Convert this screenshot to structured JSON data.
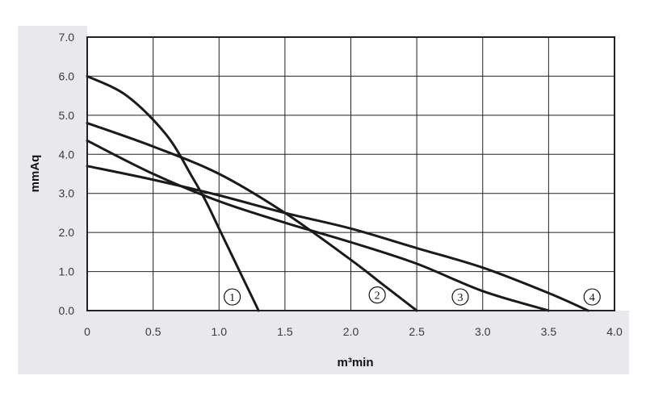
{
  "chart_data": {
    "type": "line",
    "title": "",
    "xlabel": "m³min",
    "ylabel": "mmAq",
    "xlim": [
      0,
      4.0
    ],
    "ylim": [
      0,
      7.0
    ],
    "x_ticks": [
      {
        "value": 0,
        "label": "0"
      },
      {
        "value": 0.5,
        "label": "0.5"
      },
      {
        "value": 1.0,
        "label": "1.0"
      },
      {
        "value": 1.5,
        "label": "1.5"
      },
      {
        "value": 2.0,
        "label": "2.0"
      },
      {
        "value": 2.5,
        "label": "2.5"
      },
      {
        "value": 3.0,
        "label": "3.0"
      },
      {
        "value": 3.5,
        "label": "3.5"
      },
      {
        "value": 4.0,
        "label": "4.0"
      }
    ],
    "y_ticks": [
      {
        "value": 0,
        "label": "0.0"
      },
      {
        "value": 1.0,
        "label": "1.0"
      },
      {
        "value": 2.0,
        "label": "2.0"
      },
      {
        "value": 3.0,
        "label": "3.0"
      },
      {
        "value": 4.0,
        "label": "4.0"
      },
      {
        "value": 5.0,
        "label": "5.0"
      },
      {
        "value": 6.0,
        "label": "6.0"
      },
      {
        "value": 7.0,
        "label": "7.0"
      }
    ],
    "grid": true,
    "series": [
      {
        "marker": "①",
        "label_at": [
          1.1,
          0.35
        ],
        "x": [
          0,
          0.3,
          0.6,
          0.8,
          0.9,
          1.0,
          1.1,
          1.2,
          1.3
        ],
        "y": [
          6.0,
          5.5,
          4.5,
          3.4,
          2.8,
          2.1,
          1.4,
          0.7,
          0.0
        ]
      },
      {
        "marker": "②",
        "label_at": [
          2.2,
          0.4
        ],
        "x": [
          0,
          0.5,
          1.0,
          1.5,
          2.0,
          2.25,
          2.5
        ],
        "y": [
          4.8,
          4.2,
          3.5,
          2.5,
          1.3,
          0.65,
          0.0
        ]
      },
      {
        "marker": "③",
        "label_at": [
          2.83,
          0.35
        ],
        "x": [
          0,
          0.5,
          1.0,
          1.5,
          2.0,
          2.5,
          3.0,
          3.5
        ],
        "y": [
          4.35,
          3.5,
          2.8,
          2.25,
          1.75,
          1.2,
          0.5,
          0.0
        ]
      },
      {
        "marker": "④",
        "label_at": [
          3.83,
          0.35
        ],
        "x": [
          0,
          0.5,
          1.0,
          1.5,
          2.0,
          2.5,
          3.0,
          3.5,
          3.8
        ],
        "y": [
          3.7,
          3.35,
          2.95,
          2.5,
          2.1,
          1.6,
          1.1,
          0.45,
          0.0
        ]
      }
    ]
  }
}
